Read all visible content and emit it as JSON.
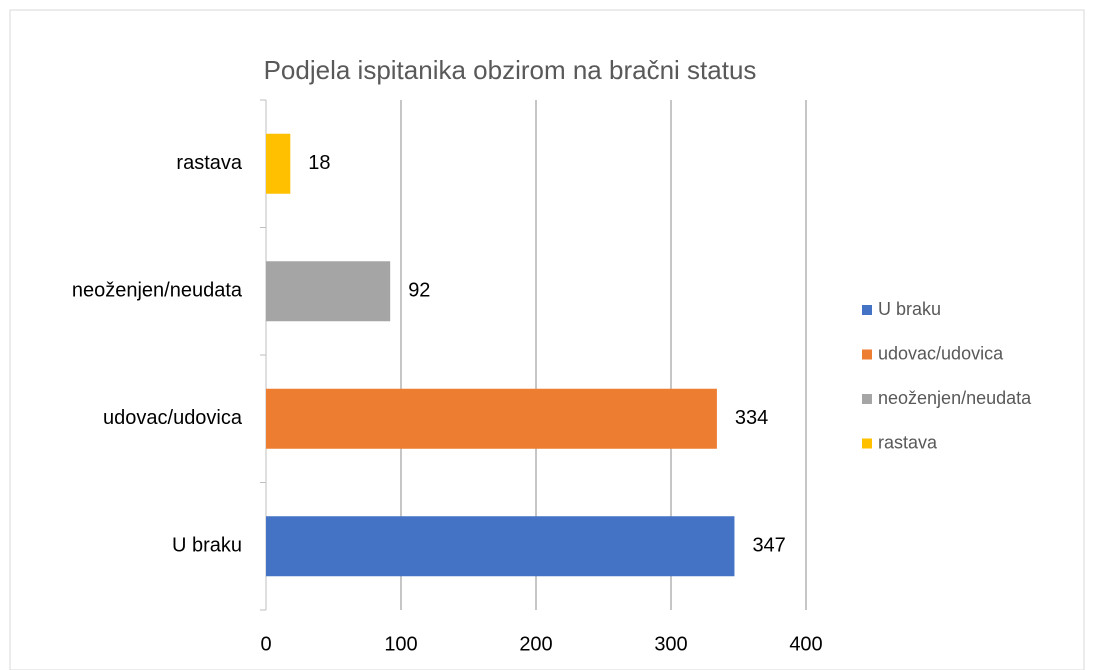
{
  "chart_data": {
    "type": "bar",
    "orientation": "horizontal",
    "title": "Podjela ispitanika obzirom na bračni status",
    "categories": [
      "U braku",
      "udovac/udovica",
      "neoženjen/neudata",
      "rastava"
    ],
    "values": [
      347,
      334,
      92,
      18
    ],
    "colors": [
      "#4472c4",
      "#ed7d31",
      "#a5a5a5",
      "#ffc000"
    ],
    "xlim": [
      0,
      400
    ],
    "xticks": [
      0,
      100,
      200,
      300,
      400
    ],
    "grid": true,
    "legend": "right"
  }
}
